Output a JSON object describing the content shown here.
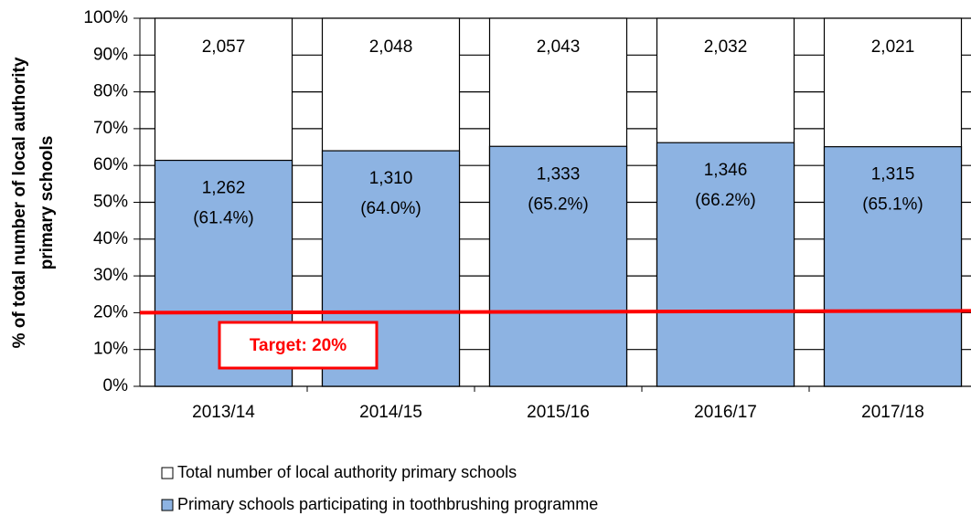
{
  "chart_data": {
    "type": "bar",
    "y_axis_label": [
      "% of total number of local authority",
      "primary schools"
    ],
    "categories": [
      "2013/14",
      "2014/15",
      "2015/16",
      "2016/17",
      "2017/18"
    ],
    "series": [
      {
        "name": "Total number of local authority primary schools",
        "color": "#ffffff",
        "values": [
          100,
          100,
          100,
          100,
          100
        ],
        "count_labels": [
          "2,057",
          "2,048",
          "2,043",
          "2,032",
          "2,021"
        ]
      },
      {
        "name": "Primary schools participating in toothbrushing programme",
        "color": "#8db3e2",
        "values": [
          61.4,
          64.0,
          65.2,
          66.2,
          65.1
        ],
        "count_labels": [
          "1,262",
          "1,310",
          "1,333",
          "1,346",
          "1,315"
        ],
        "value_labels": [
          "(61.4%)",
          "(64.0%)",
          "(65.2%)",
          "(66.2%)",
          "(65.1%)"
        ]
      }
    ],
    "target": {
      "value": 20,
      "label": "Target: 20%",
      "color": "#ff0000"
    },
    "ylim": [
      0,
      100
    ],
    "yticks": [
      {
        "value": 0,
        "label": "0%"
      },
      {
        "value": 10,
        "label": "10%"
      },
      {
        "value": 20,
        "label": "20%"
      },
      {
        "value": 30,
        "label": "30%"
      },
      {
        "value": 40,
        "label": "40%"
      },
      {
        "value": 50,
        "label": "50%"
      },
      {
        "value": 60,
        "label": "60%"
      },
      {
        "value": 70,
        "label": "70%"
      },
      {
        "value": 80,
        "label": "80%"
      },
      {
        "value": 90,
        "label": "90%"
      },
      {
        "value": 100,
        "label": "100%"
      }
    ],
    "grid": true
  }
}
